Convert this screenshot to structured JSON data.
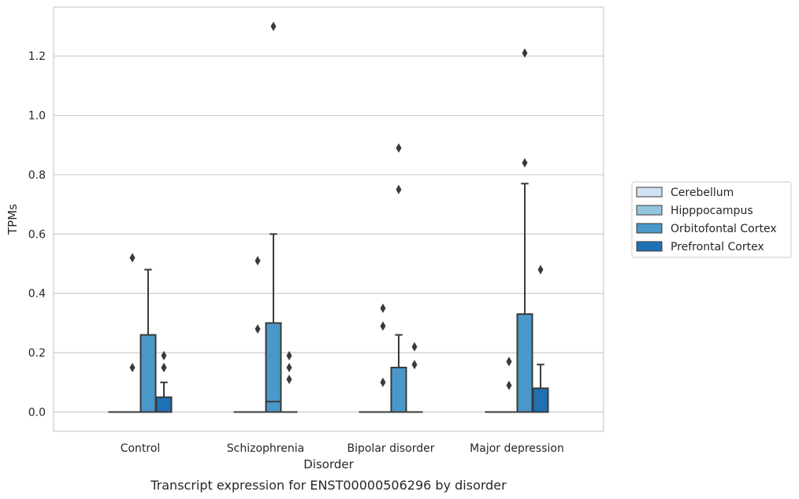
{
  "chart_data": {
    "type": "box",
    "caption": "Transcript expression for ENST00000506296 by disorder",
    "xlabel": "Disorder",
    "ylabel": "TPMs",
    "ylim": [
      -0.065,
      1.365
    ],
    "yticks": [
      "0.0",
      "0.2",
      "0.4",
      "0.6",
      "0.8",
      "1.0",
      "1.2"
    ],
    "categories": [
      "Control",
      "Schizophrenia",
      "Bipolar disorder",
      "Major depression"
    ],
    "grid": true,
    "legend_position": "right",
    "series": [
      {
        "name": "Cerebellum",
        "color": "#d0e1f2",
        "boxes": [
          {
            "q1": 0,
            "median": 0,
            "q3": 0,
            "whisker_low": 0,
            "whisker_high": 0,
            "outliers": []
          },
          {
            "q1": 0,
            "median": 0,
            "q3": 0,
            "whisker_low": 0,
            "whisker_high": 0,
            "outliers": []
          },
          {
            "q1": 0,
            "median": 0,
            "q3": 0,
            "whisker_low": 0,
            "whisker_high": 0,
            "outliers": []
          },
          {
            "q1": 0,
            "median": 0,
            "q3": 0,
            "whisker_low": 0,
            "whisker_high": 0,
            "outliers": []
          }
        ]
      },
      {
        "name": "Hipppocampus",
        "color": "#94c4df",
        "boxes": [
          {
            "q1": 0,
            "median": 0,
            "q3": 0,
            "whisker_low": 0,
            "whisker_high": 0,
            "outliers": [
              0.15,
              0.52
            ]
          },
          {
            "q1": 0,
            "median": 0,
            "q3": 0,
            "whisker_low": 0,
            "whisker_high": 0,
            "outliers": [
              0.28,
              0.51
            ]
          },
          {
            "q1": 0,
            "median": 0,
            "q3": 0,
            "whisker_low": 0,
            "whisker_high": 0,
            "outliers": [
              0.1,
              0.29,
              0.35
            ]
          },
          {
            "q1": 0,
            "median": 0,
            "q3": 0,
            "whisker_low": 0,
            "whisker_high": 0,
            "outliers": [
              0.09,
              0.17,
              0.17
            ]
          }
        ]
      },
      {
        "name": "Orbitofontal Cortex",
        "color": "#4a98c9",
        "boxes": [
          {
            "q1": 0,
            "median": 0,
            "q3": 0.26,
            "whisker_low": 0,
            "whisker_high": 0.48,
            "outliers": []
          },
          {
            "q1": 0,
            "median": 0.035,
            "q3": 0.3,
            "whisker_low": 0,
            "whisker_high": 0.6,
            "outliers": [
              1.3
            ]
          },
          {
            "q1": 0,
            "median": 0,
            "q3": 0.15,
            "whisker_low": 0,
            "whisker_high": 0.26,
            "outliers": [
              0.75,
              0.89
            ]
          },
          {
            "q1": 0,
            "median": 0,
            "q3": 0.33,
            "whisker_low": 0,
            "whisker_high": 0.77,
            "outliers": [
              0.84,
              1.21
            ]
          }
        ]
      },
      {
        "name": "Prefrontal Cortex",
        "color": "#2070b4",
        "boxes": [
          {
            "q1": 0,
            "median": 0,
            "q3": 0.05,
            "whisker_low": 0,
            "whisker_high": 0.1,
            "outliers": [
              0.15,
              0.15,
              0.19
            ]
          },
          {
            "q1": 0,
            "median": 0,
            "q3": 0,
            "whisker_low": 0,
            "whisker_high": 0,
            "outliers": [
              0.11,
              0.15,
              0.19
            ]
          },
          {
            "q1": 0,
            "median": 0,
            "q3": 0,
            "whisker_low": 0,
            "whisker_high": 0,
            "outliers": [
              0.16,
              0.22
            ]
          },
          {
            "q1": 0,
            "median": 0,
            "q3": 0.08,
            "whisker_low": 0,
            "whisker_high": 0.16,
            "outliers": [
              0.48
            ]
          }
        ]
      }
    ]
  }
}
